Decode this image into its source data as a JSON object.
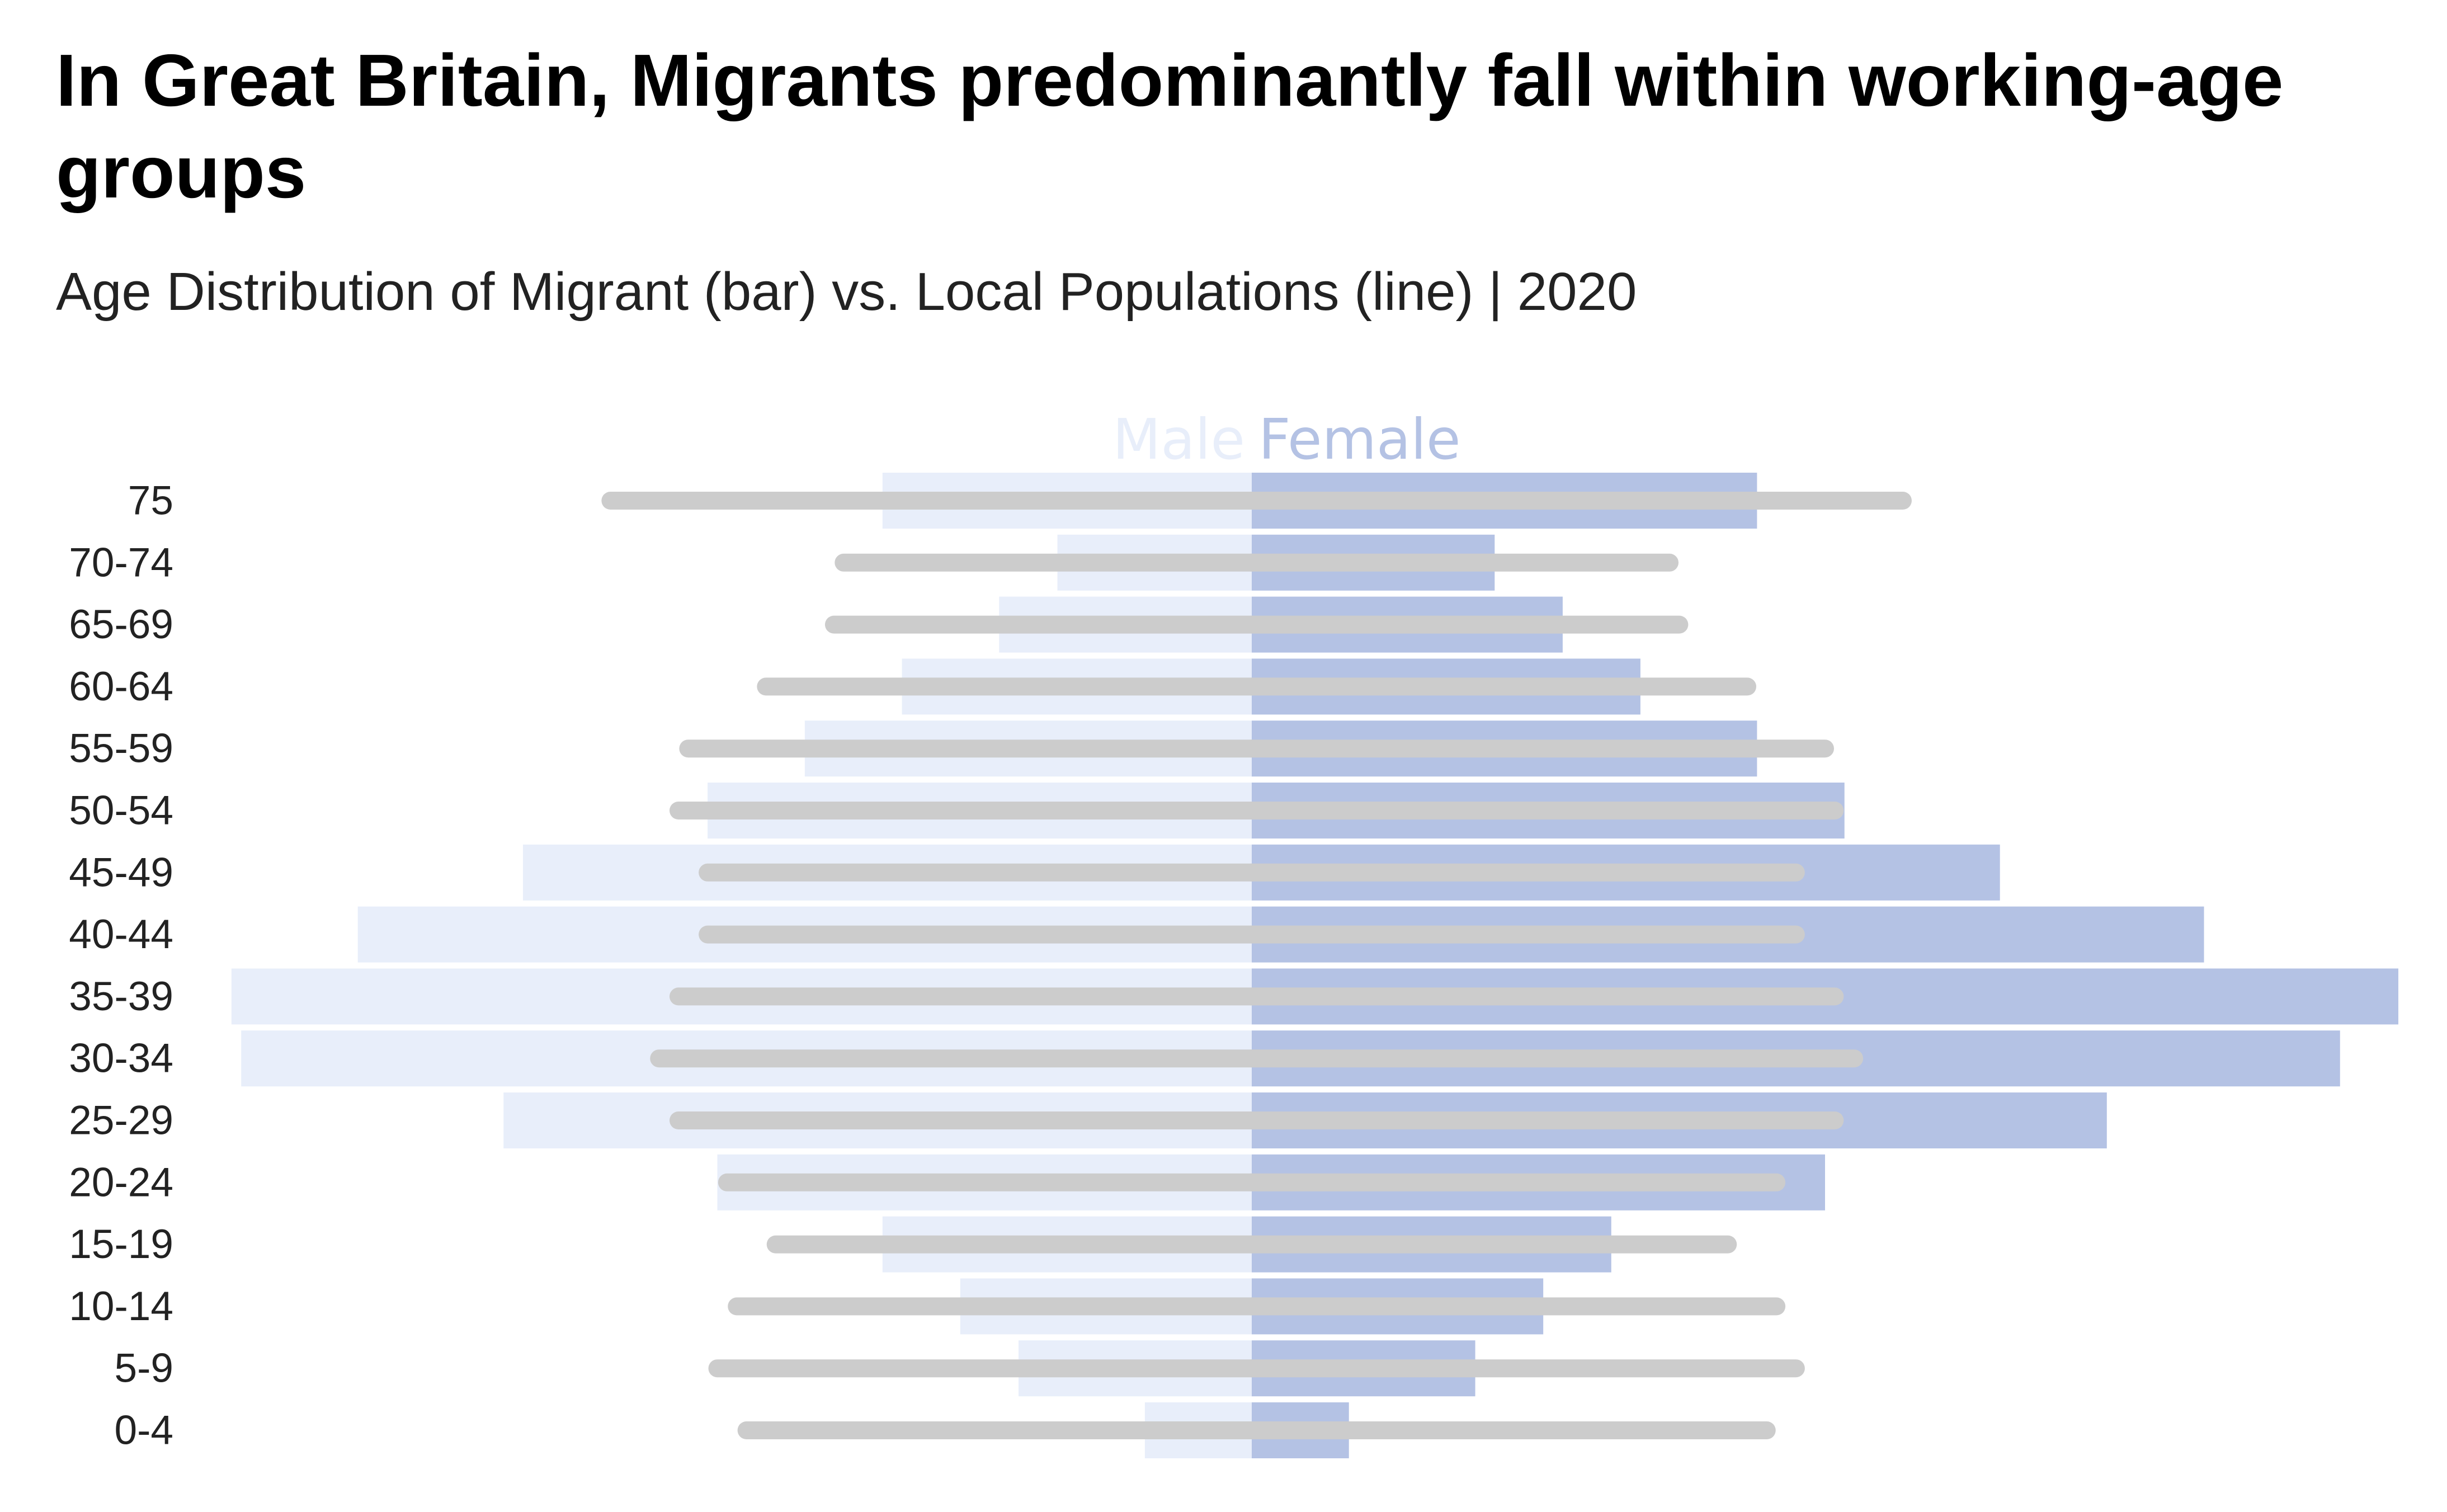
{
  "chart_data": {
    "type": "bar",
    "title": "In Great Britain, Migrants predominantly fall within working-age groups",
    "subtitle": "Age Distribution of Migrant (bar) vs. Local Populations (line) | 2020",
    "categories": [
      "0-4",
      "5-9",
      "10-14",
      "15-19",
      "20-24",
      "25-29",
      "30-34",
      "35-39",
      "40-44",
      "45-49",
      "50-54",
      "55-59",
      "60-64",
      "65-69",
      "70-74",
      "75"
    ],
    "series": [
      {
        "name": "Male",
        "kind": "bar",
        "color": "#e8eefa",
        "values": [
          1.1,
          2.4,
          3.0,
          3.8,
          5.5,
          7.7,
          10.4,
          10.5,
          9.2,
          7.5,
          5.6,
          4.6,
          3.6,
          2.6,
          2.0,
          3.8
        ]
      },
      {
        "name": "Female",
        "kind": "bar",
        "color": "#b4c2e4",
        "values": [
          1.0,
          2.3,
          3.0,
          3.7,
          5.9,
          8.8,
          11.2,
          11.8,
          9.8,
          7.7,
          6.1,
          5.2,
          4.0,
          3.2,
          2.5,
          5.2
        ]
      },
      {
        "kind": "line",
        "side": "Male",
        "color": "#cccccc",
        "values": [
          5.2,
          5.5,
          5.3,
          4.9,
          5.4,
          5.9,
          6.1,
          5.9,
          5.6,
          5.6,
          5.9,
          5.8,
          5.0,
          4.3,
          4.2,
          6.6
        ]
      },
      {
        "kind": "line",
        "side": "Female",
        "color": "#cccccc",
        "values": [
          5.3,
          5.6,
          5.4,
          4.9,
          5.4,
          6.0,
          6.2,
          6.0,
          5.6,
          5.6,
          6.0,
          5.9,
          5.1,
          4.4,
          4.3,
          6.7
        ]
      }
    ],
    "xlim": [
      -13.2,
      13.2
    ],
    "grid": false,
    "legend": "top-center"
  }
}
